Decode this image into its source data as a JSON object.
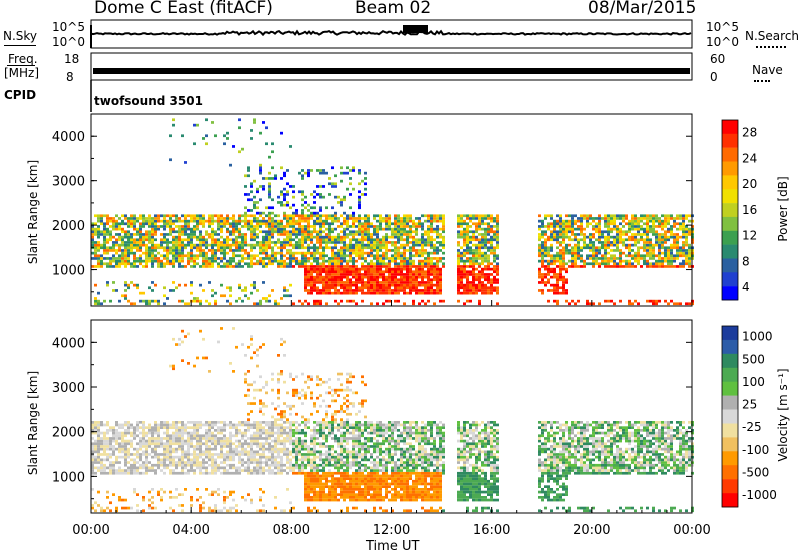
{
  "header": {
    "station": "Dome C East (fitACF)",
    "beam": "Beam 02",
    "date": "08/Mar/2015"
  },
  "aux": {
    "nsky_label": "N.Sky",
    "nsky_ticks": [
      "10^5",
      "10^0"
    ],
    "nsearch_label": "N.Search",
    "nsearch_ticks": [
      "10^5",
      "10^0"
    ],
    "freq_label": "Freq.",
    "freq_unit": "[MHz]",
    "freq_ticks": [
      "18",
      "8"
    ],
    "nave_label": "Nave",
    "nave_ticks": [
      "60",
      "0"
    ],
    "cpid_label": "CPID",
    "cpid_value": "twofsound 3501"
  },
  "chart_data": [
    {
      "type": "heatmap",
      "name": "power-panel",
      "ylabel": "Slant Range [km]",
      "yticks": [
        "4000",
        "3000",
        "2000",
        "1000"
      ],
      "ylim": [
        180,
        4500
      ],
      "colorbar": {
        "label": "Power [dB]",
        "ticks": [
          "28",
          "24",
          "20",
          "16",
          "12",
          "8",
          "4"
        ],
        "colors": [
          "#ff0000",
          "#ff3000",
          "#ff6a00",
          "#ff9a00",
          "#ffc800",
          "#f0e000",
          "#c0d020",
          "#80c040",
          "#3ca050",
          "#2a8a70",
          "#2a60a0",
          "#2040d0",
          "#0000ff"
        ]
      }
    },
    {
      "type": "heatmap",
      "name": "velocity-panel",
      "ylabel": "Slant Range [km]",
      "yticks": [
        "4000",
        "3000",
        "2000",
        "1000"
      ],
      "ylim": [
        180,
        4500
      ],
      "colorbar": {
        "label": "Velocity [m s⁻¹]",
        "ticks": [
          "1000",
          "500",
          "100",
          "25",
          "-25",
          "-100",
          "-500",
          "-1000"
        ],
        "colors": [
          "#1c3c9c",
          "#2c5ca8",
          "#2f8a60",
          "#4caa52",
          "#60c040",
          "#b0b0b0",
          "#d8d8d8",
          "#f0e0a0",
          "#f0c060",
          "#ff9a00",
          "#ff7000",
          "#ff3a00",
          "#ff0000"
        ]
      }
    }
  ],
  "xaxis": {
    "label": "Time UT",
    "ticks": [
      "00:00",
      "04:00",
      "08:00",
      "12:00",
      "16:00",
      "20:00",
      "00:00"
    ]
  }
}
